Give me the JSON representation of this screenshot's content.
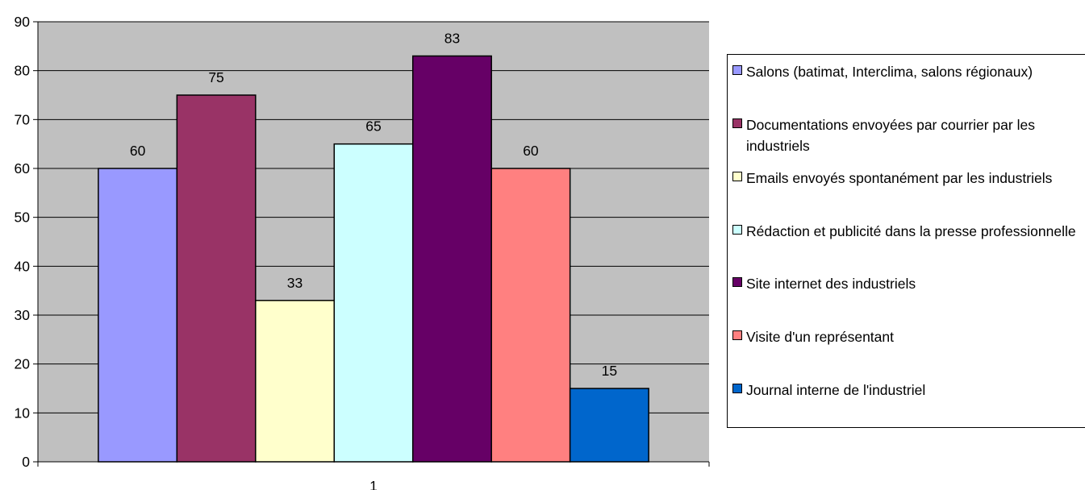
{
  "chart_data": {
    "type": "bar",
    "categories": [
      "1"
    ],
    "ylim": [
      0,
      90
    ],
    "yticks": [
      0,
      10,
      20,
      30,
      40,
      50,
      60,
      70,
      80,
      90
    ],
    "grid": true,
    "legend_position": "right",
    "plot_background": "#c0c0c0",
    "series": [
      {
        "name": "Salons (batimat, Interclima, salons régionaux)",
        "values": [
          60
        ],
        "color": "#9999ff"
      },
      {
        "name": "Documentations envoyées par courrier par les industriels",
        "values": [
          75
        ],
        "color": "#993366"
      },
      {
        "name": "Emails envoyés spontanément par les industriels",
        "values": [
          33
        ],
        "color": "#ffffcc"
      },
      {
        "name": "Rédaction et publicité dans la presse professionnelle",
        "values": [
          65
        ],
        "color": "#ccffff"
      },
      {
        "name": "Site internet des industriels",
        "values": [
          83
        ],
        "color": "#660066"
      },
      {
        "name": "Visite d'un représentant",
        "values": [
          60
        ],
        "color": "#ff8080"
      },
      {
        "name": "Journal interne de l'industriel",
        "values": [
          15
        ],
        "color": "#0066cc"
      }
    ]
  },
  "legend": {
    "items": [
      {
        "label": "Salons (batimat, Interclima, salons régionaux)",
        "color": "#9999ff"
      },
      {
        "label": "Documentations envoyées par courrier par les industriels",
        "color": "#993366"
      },
      {
        "label": "Emails envoyés spontanément par les industriels",
        "color": "#ffffcc"
      },
      {
        "label": "Rédaction et publicité dans la presse professionnelle",
        "color": "#ccffff"
      },
      {
        "label": "Site internet des industriels",
        "color": "#660066"
      },
      {
        "label": "Visite d'un représentant",
        "color": "#ff8080"
      },
      {
        "label": "Journal interne de l'industriel",
        "color": "#0066cc"
      }
    ]
  }
}
